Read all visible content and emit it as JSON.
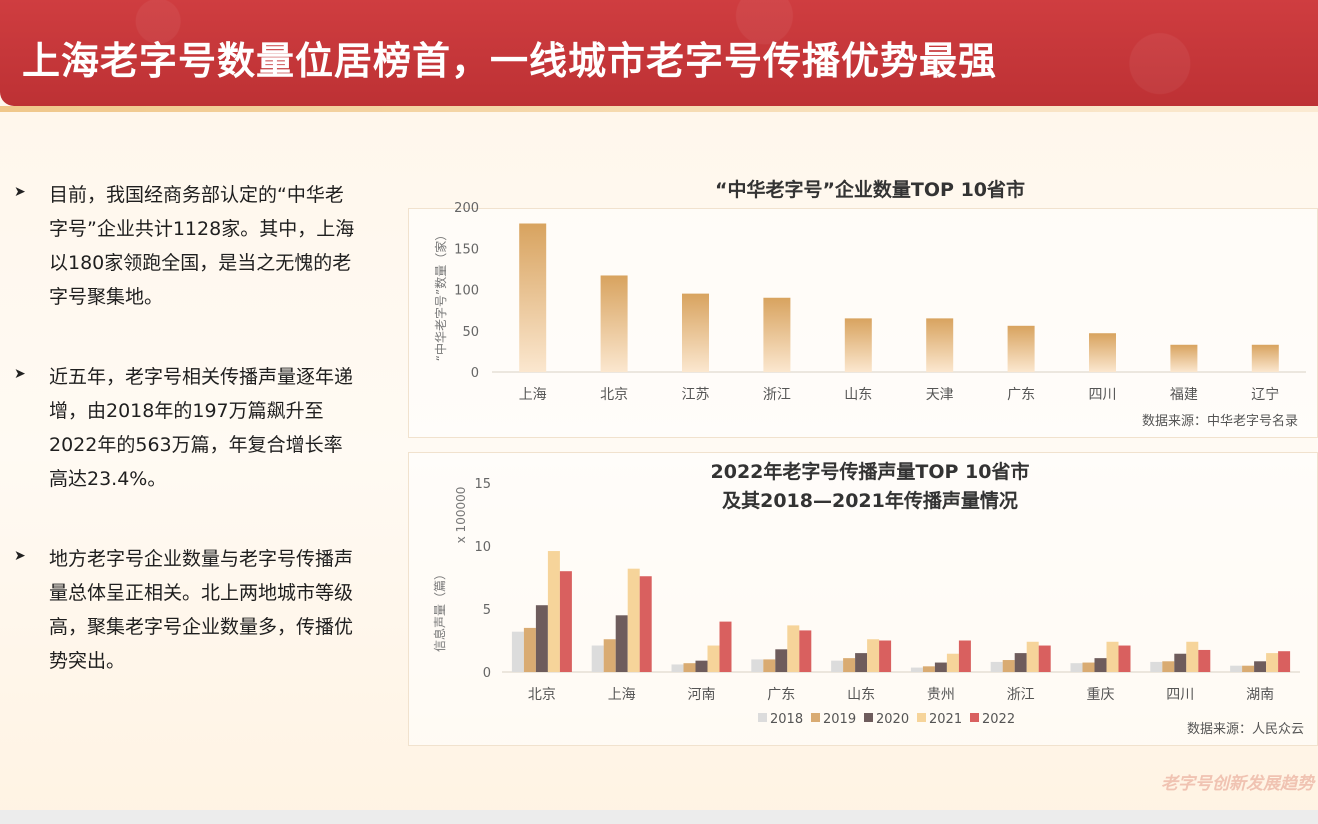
{
  "page": {
    "title": "上海老字号数量位居榜首，一线城市老字号传播优势最强",
    "watermark": "老字号创新发展趋势"
  },
  "bullets": [
    {
      "icon": "arrowhead-bullet-icon",
      "text": "目前，我国经商务部认定的“中华老字号”企业共计1128家。其中，上海以180家领跑全国，是当之无愧的老字号聚集地。"
    },
    {
      "icon": "arrowhead-bullet-icon",
      "text": "近五年，老字号相关传播声量逐年递增，由2018年的197万篇飙升至2022年的563万篇，年复合增长率高达23.4%。"
    },
    {
      "icon": "arrowhead-bullet-icon",
      "text": "地方老字号企业数量与老字号传播声量总体呈正相关。北上两地城市等级高，聚集老字号企业数量多，传播优势突出。"
    }
  ],
  "colors": {
    "header_red": "#c5383b",
    "bar_gold": "#d8a35f",
    "s2018": "#dcdcdc",
    "s2019": "#d9ab72",
    "s2020": "#6e5c5c",
    "s2021": "#f6d49a",
    "s2022": "#d9605f"
  },
  "chart_data": [
    {
      "type": "bar",
      "title": "“中华老字号”企业数量TOP 10省市",
      "ylabel": "“中华老字号”数量（家）",
      "categories": [
        "上海",
        "北京",
        "江苏",
        "浙江",
        "山东",
        "天津",
        "广东",
        "四川",
        "福建",
        "辽宁"
      ],
      "values": [
        180,
        117,
        95,
        90,
        65,
        65,
        56,
        47,
        33,
        33
      ],
      "ylim": [
        0,
        200
      ],
      "yticks": [
        0,
        50,
        100,
        150,
        200
      ],
      "grid": false,
      "source": "数据来源：中华老字号名录"
    },
    {
      "type": "bar",
      "title": "2022年老字号传播声量TOP 10省市",
      "subtitle": "及其2018—2021年传播声量情况",
      "ylabel": "信息声量（篇）",
      "yunit": "x 100000",
      "categories": [
        "北京",
        "上海",
        "河南",
        "广东",
        "山东",
        "贵州",
        "浙江",
        "重庆",
        "四川",
        "湖南"
      ],
      "series": [
        {
          "name": "2018",
          "values": [
            3.2,
            2.1,
            0.6,
            1.0,
            0.9,
            0.35,
            0.8,
            0.7,
            0.8,
            0.5
          ]
        },
        {
          "name": "2019",
          "values": [
            3.5,
            2.6,
            0.7,
            1.0,
            1.1,
            0.45,
            0.95,
            0.75,
            0.85,
            0.5
          ]
        },
        {
          "name": "2020",
          "values": [
            5.3,
            4.5,
            0.9,
            1.8,
            1.5,
            0.75,
            1.5,
            1.1,
            1.45,
            0.85
          ]
        },
        {
          "name": "2021",
          "values": [
            9.6,
            8.2,
            2.1,
            3.7,
            2.6,
            1.45,
            2.4,
            2.4,
            2.4,
            1.5
          ]
        },
        {
          "name": "2022",
          "values": [
            8.0,
            7.6,
            4.0,
            3.3,
            2.5,
            2.5,
            2.1,
            2.1,
            1.75,
            1.65
          ]
        }
      ],
      "ylim": [
        0,
        15
      ],
      "yticks": [
        0,
        5,
        10,
        15
      ],
      "legend": "bottom-center",
      "grid": false,
      "source": "数据来源：人民众云"
    }
  ]
}
